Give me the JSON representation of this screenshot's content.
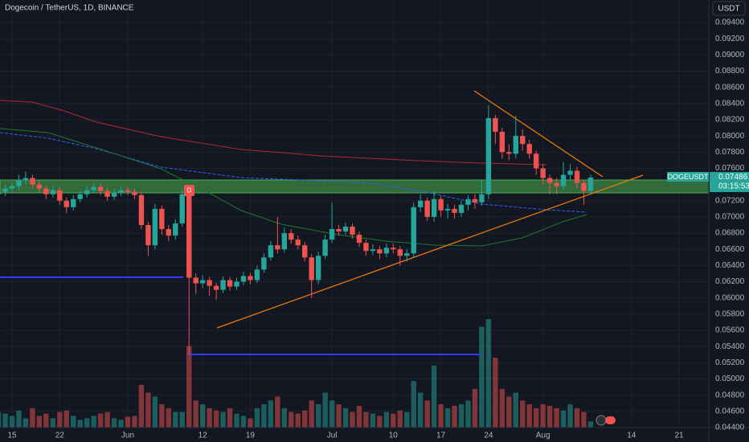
{
  "chart_data": {
    "type": "candlestick",
    "title": "Dogecoin / TetherUS, 1D, BINANCE",
    "currency": "USDT",
    "symbol": "DOGEUSDT",
    "price_label": "0.07486",
    "countdown": "03:15:53",
    "event_marker": "D",
    "up_color": "#26a69a",
    "down_color": "#ef5350",
    "categories": [
      null,
      null,
      "15",
      null,
      null,
      null,
      null,
      null,
      null,
      "22",
      null,
      null,
      null,
      null,
      null,
      null,
      null,
      null,
      null,
      "Jun",
      null,
      null,
      null,
      null,
      null,
      null,
      null,
      null,
      null,
      null,
      "12",
      null,
      null,
      null,
      null,
      null,
      null,
      "19",
      null,
      null,
      null,
      null,
      null,
      null,
      null,
      null,
      null,
      null,
      null,
      "Jul",
      null,
      null,
      null,
      null,
      null,
      null,
      null,
      null,
      "10",
      null,
      null,
      null,
      null,
      null,
      null,
      "17",
      null,
      null,
      null,
      null,
      null,
      null,
      "24",
      null,
      null,
      null,
      null,
      null,
      null,
      null,
      "Aug",
      null,
      null,
      null,
      null,
      null,
      null,
      null,
      null,
      null,
      null,
      null,
      null,
      "14",
      null,
      null,
      null,
      null,
      null,
      null,
      "21"
    ],
    "open": [
      0.0728,
      0.0731,
      0.0735,
      0.0738,
      0.0745,
      0.0748,
      0.074,
      0.0735,
      0.0728,
      0.0733,
      0.072,
      0.0712,
      0.0722,
      0.0728,
      0.0733,
      0.0737,
      0.0732,
      0.0725,
      0.073,
      0.0733,
      0.0731,
      0.0727,
      0.069,
      0.0665,
      0.071,
      0.0685,
      0.0677,
      0.0692,
      0.0728,
      0.0625,
      0.0618,
      0.0622,
      0.0615,
      0.061,
      0.0622,
      0.0614,
      0.062,
      0.0627,
      0.0622,
      0.0635,
      0.065,
      0.0665,
      0.066,
      0.068,
      0.0672,
      0.0665,
      0.065,
      0.0622,
      0.0652,
      0.0672,
      0.0685,
      0.0682,
      0.0688,
      0.0678,
      0.0668,
      0.0658,
      0.066,
      0.0655,
      0.0662,
      0.066,
      0.0652,
      0.0655,
      0.0712,
      0.072,
      0.07,
      0.0722,
      0.0708,
      0.071,
      0.0705,
      0.0715,
      0.0722,
      0.0718,
      0.0728,
      0.0822,
      0.0805,
      0.078,
      0.0778,
      0.08,
      0.079,
      0.0778,
      0.076,
      0.0748,
      0.0742,
      0.0738,
      0.0752,
      0.0757,
      0.0742,
      0.0732,
      null,
      null,
      null,
      null,
      null,
      null,
      null,
      null,
      null,
      null,
      null,
      null,
      null
    ],
    "high": [
      0.0736,
      0.074,
      0.0743,
      0.0752,
      0.0756,
      0.0752,
      0.0745,
      0.0739,
      0.0738,
      0.0737,
      0.0724,
      0.0727,
      0.0732,
      0.0738,
      0.0742,
      0.0741,
      0.0736,
      0.0735,
      0.0737,
      0.0737,
      0.0735,
      0.0731,
      0.0694,
      0.0716,
      0.0714,
      0.069,
      0.0697,
      0.0733,
      0.0735,
      0.063,
      0.0628,
      0.0626,
      0.0619,
      0.0627,
      0.0626,
      0.0625,
      0.0632,
      0.0631,
      0.064,
      0.0655,
      0.067,
      0.07,
      0.0687,
      0.0685,
      0.0677,
      0.0669,
      0.0654,
      0.0657,
      0.0678,
      0.0718,
      0.069,
      0.0693,
      0.0692,
      0.0682,
      0.0672,
      0.0666,
      0.0664,
      0.0667,
      0.0667,
      0.0664,
      0.066,
      0.0718,
      0.0728,
      0.0724,
      0.0732,
      0.0726,
      0.0716,
      0.0715,
      0.072,
      0.0727,
      0.0728,
      0.0746,
      0.0838,
      0.0826,
      0.081,
      0.079,
      0.0825,
      0.0808,
      0.0795,
      0.0782,
      0.0765,
      0.0752,
      0.0748,
      0.0768,
      0.0765,
      0.0762,
      0.0746,
      0.0752,
      null,
      null,
      null,
      null,
      null,
      null,
      null,
      null,
      null,
      null,
      null,
      null,
      null
    ],
    "low": [
      0.0723,
      0.0726,
      0.073,
      0.0733,
      0.074,
      0.0735,
      0.073,
      0.0722,
      0.0724,
      0.0715,
      0.0705,
      0.0708,
      0.0718,
      0.0724,
      0.0729,
      0.0727,
      0.072,
      0.0721,
      0.0726,
      0.0727,
      0.0722,
      0.0685,
      0.0652,
      0.066,
      0.0678,
      0.067,
      0.0672,
      0.0688,
      0.053,
      0.0605,
      0.0612,
      0.0603,
      0.0598,
      0.0606,
      0.0609,
      0.061,
      0.0616,
      0.0617,
      0.0618,
      0.0631,
      0.0646,
      0.0655,
      0.0656,
      0.0667,
      0.066,
      0.0645,
      0.06,
      0.0617,
      0.0648,
      0.0668,
      0.0677,
      0.0678,
      0.0673,
      0.0663,
      0.0652,
      0.0653,
      0.0648,
      0.065,
      0.0655,
      0.064,
      0.0645,
      0.065,
      0.0706,
      0.0695,
      0.0694,
      0.07,
      0.0698,
      0.0698,
      0.07,
      0.0708,
      0.071,
      0.0714,
      0.0722,
      0.079,
      0.0772,
      0.077,
      0.0772,
      0.0782,
      0.0772,
      0.0752,
      0.074,
      0.0728,
      0.0728,
      0.0733,
      0.0745,
      0.0735,
      0.0715,
      0.0728,
      null,
      null,
      null,
      null,
      null,
      null,
      null,
      null,
      null,
      null,
      null,
      null,
      null
    ],
    "close": [
      0.0731,
      0.0735,
      0.0738,
      0.0745,
      0.0748,
      0.074,
      0.0735,
      0.0728,
      0.0733,
      0.072,
      0.0712,
      0.0722,
      0.0728,
      0.0733,
      0.0737,
      0.0732,
      0.0725,
      0.073,
      0.0733,
      0.0731,
      0.0727,
      0.069,
      0.0665,
      0.071,
      0.0685,
      0.0677,
      0.0692,
      0.0728,
      0.0625,
      0.0618,
      0.0622,
      0.0615,
      0.061,
      0.0622,
      0.0614,
      0.062,
      0.0627,
      0.0622,
      0.0635,
      0.065,
      0.0665,
      0.066,
      0.068,
      0.0672,
      0.0665,
      0.065,
      0.0622,
      0.0652,
      0.0672,
      0.0685,
      0.0682,
      0.0688,
      0.0678,
      0.0668,
      0.0658,
      0.066,
      0.0655,
      0.0662,
      0.066,
      0.0652,
      0.0655,
      0.0712,
      0.072,
      0.07,
      0.0722,
      0.0708,
      0.071,
      0.0705,
      0.0715,
      0.0722,
      0.0718,
      0.0728,
      0.0822,
      0.0805,
      0.078,
      0.0778,
      0.08,
      0.079,
      0.0778,
      0.076,
      0.0748,
      0.0742,
      0.0738,
      0.0752,
      0.0757,
      0.0742,
      0.0732,
      0.07486,
      null,
      null,
      null,
      null,
      null,
      null,
      null,
      null,
      null,
      null,
      null,
      null,
      null
    ],
    "volume": [
      20,
      18,
      15,
      22,
      12,
      25,
      15,
      18,
      12,
      20,
      22,
      15,
      10,
      12,
      15,
      18,
      20,
      12,
      10,
      14,
      15,
      55,
      45,
      40,
      30,
      25,
      20,
      20,
      105,
      35,
      30,
      25,
      22,
      20,
      25,
      18,
      15,
      12,
      25,
      30,
      35,
      40,
      25,
      20,
      18,
      22,
      35,
      30,
      45,
      35,
      30,
      25,
      20,
      28,
      20,
      18,
      15,
      20,
      18,
      22,
      20,
      60,
      45,
      35,
      80,
      30,
      25,
      28,
      30,
      35,
      50,
      130,
      140,
      90,
      50,
      40,
      45,
      35,
      30,
      25,
      30,
      28,
      25,
      22,
      30,
      25,
      20,
      8,
      null,
      null,
      null,
      null,
      null,
      null,
      null,
      null,
      null,
      null,
      null,
      null,
      null
    ],
    "ylim": [
      0.044,
      0.094
    ],
    "yticks": [
      {
        "value": 0.044,
        "label": "0.04400"
      },
      {
        "value": 0.046,
        "label": "0.04600"
      },
      {
        "value": 0.048,
        "label": "0.04800"
      },
      {
        "value": 0.05,
        "label": "0.05000"
      },
      {
        "value": 0.052,
        "label": "0.05200"
      },
      {
        "value": 0.054,
        "label": "0.05400"
      },
      {
        "value": 0.056,
        "label": "0.05600"
      },
      {
        "value": 0.058,
        "label": "0.05800"
      },
      {
        "value": 0.06,
        "label": "0.06000"
      },
      {
        "value": 0.062,
        "label": "0.06200"
      },
      {
        "value": 0.064,
        "label": "0.06400"
      },
      {
        "value": 0.066,
        "label": "0.06600"
      },
      {
        "value": 0.068,
        "label": "0.06800"
      },
      {
        "value": 0.07,
        "label": "0.07000"
      },
      {
        "value": 0.072,
        "label": "0.07200"
      },
      {
        "value": 0.076,
        "label": "0.07600"
      },
      {
        "value": 0.078,
        "label": "0.07800"
      },
      {
        "value": 0.08,
        "label": "0.08000"
      },
      {
        "value": 0.082,
        "label": "0.08200"
      },
      {
        "value": 0.084,
        "label": "0.08400"
      },
      {
        "value": 0.086,
        "label": "0.08600"
      },
      {
        "value": 0.088,
        "label": "0.08800"
      },
      {
        "value": 0.09,
        "label": "0.09000"
      },
      {
        "value": 0.092,
        "label": "0.09200"
      },
      {
        "value": 0.094,
        "label": "0.09400"
      }
    ],
    "grid": true
  }
}
